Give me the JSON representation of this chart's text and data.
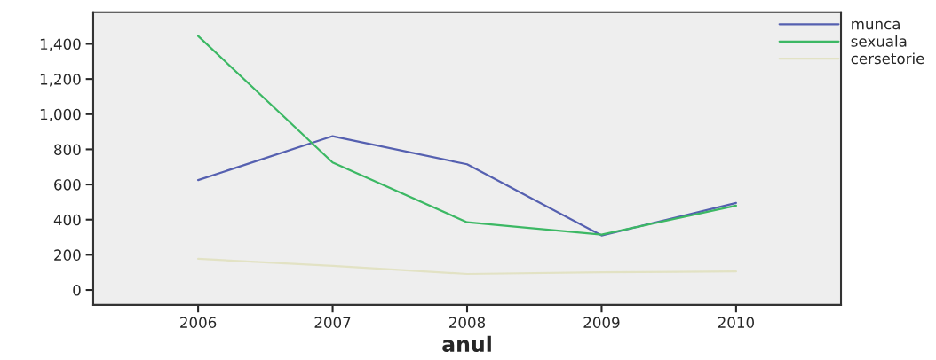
{
  "chart_data": {
    "type": "line",
    "xlabel": "anul",
    "categories": [
      "2006",
      "2007",
      "2008",
      "2009",
      "2010"
    ],
    "series": [
      {
        "name": "munca",
        "color": "#5560b0",
        "values": [
          625,
          875,
          715,
          310,
          495
        ]
      },
      {
        "name": "sexuala",
        "color": "#3cb864",
        "values": [
          1445,
          725,
          385,
          315,
          480
        ]
      },
      {
        "name": "cersetorie",
        "color": "#e2e2c4",
        "values": [
          177,
          137,
          91,
          100,
          105
        ]
      }
    ],
    "ylim": [
      -85,
      1580
    ],
    "yticks": [
      0,
      200,
      400,
      600,
      800,
      {
        "value": 1000,
        "label": "1,000"
      },
      {
        "value": 1200,
        "label": "1,200"
      },
      {
        "value": 1400,
        "label": "1,400"
      }
    ],
    "grid": false,
    "legend": "top right",
    "marker": "none",
    "line_style": "solid"
  }
}
